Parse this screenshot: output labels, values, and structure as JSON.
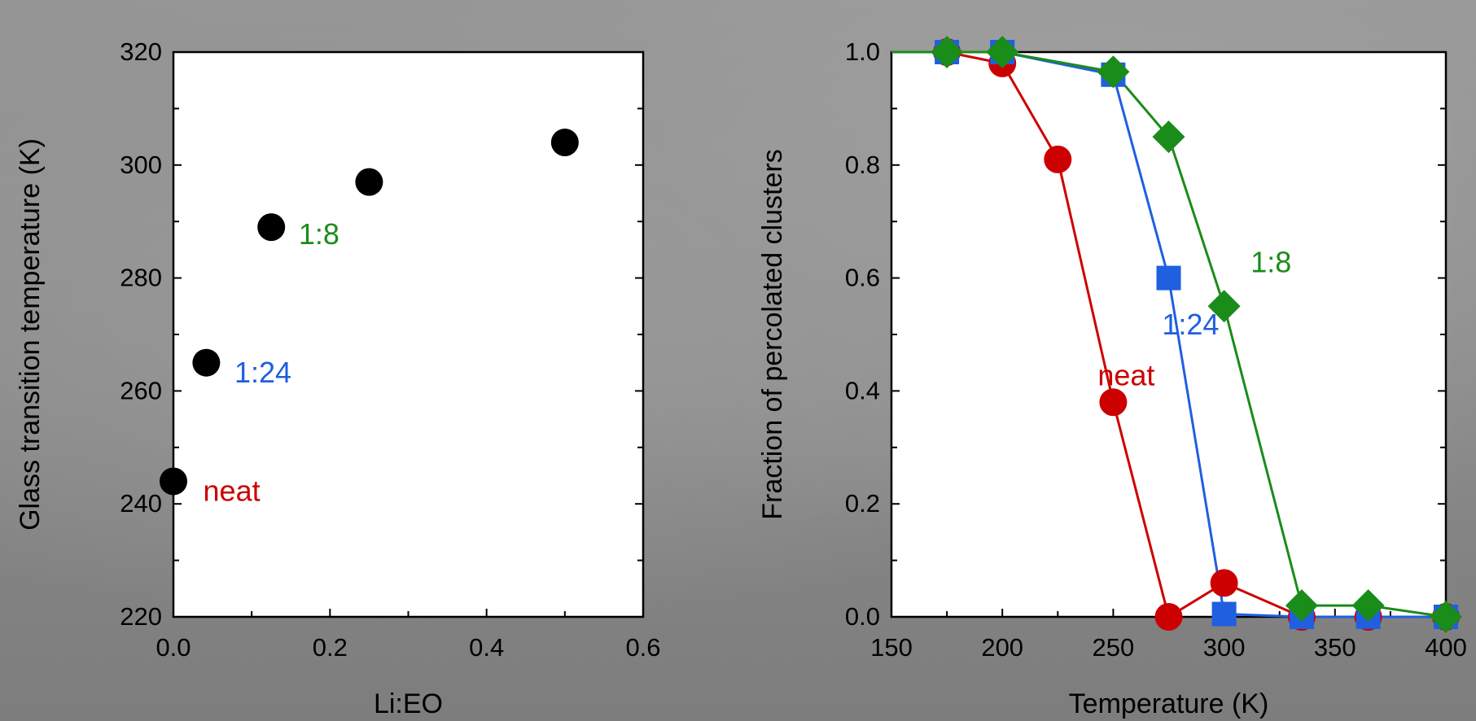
{
  "chart_data": [
    {
      "type": "scatter",
      "xlabel": "Li:EO",
      "ylabel": "Glass transition temperature (K)",
      "xlim": [
        0,
        0.6
      ],
      "ylim": [
        220,
        320
      ],
      "xticks": [
        "0.0",
        "0.2",
        "0.4",
        "0.6"
      ],
      "yticks": [
        "220",
        "240",
        "260",
        "280",
        "300",
        "320"
      ],
      "grid": false,
      "marker_color": "#000000",
      "points": [
        {
          "x": 0.0,
          "y": 244
        },
        {
          "x": 0.042,
          "y": 265
        },
        {
          "x": 0.125,
          "y": 289
        },
        {
          "x": 0.25,
          "y": 297
        },
        {
          "x": 0.5,
          "y": 304
        }
      ],
      "annotations": [
        {
          "text": "neat",
          "x": 0.038,
          "y": 240.5,
          "color": "#cc0000"
        },
        {
          "text": "1:24",
          "x": 0.078,
          "y": 261.5,
          "color": "#1f5fe0"
        },
        {
          "text": "1:8",
          "x": 0.16,
          "y": 286,
          "color": "#1a8c1a"
        }
      ]
    },
    {
      "type": "line",
      "xlabel": "Temperature (K)",
      "ylabel": "Fraction of percolated clusters",
      "xlim": [
        150,
        400
      ],
      "ylim": [
        0,
        1.0
      ],
      "xticks": [
        "150",
        "200",
        "250",
        "300",
        "350",
        "400"
      ],
      "yticks": [
        "0.0",
        "0.2",
        "0.4",
        "0.6",
        "0.8",
        "1.0"
      ],
      "grid": false,
      "series": [
        {
          "name": "neat",
          "color": "#cc0000",
          "marker": "circle",
          "x": [
            150,
            175,
            200,
            225,
            250,
            275,
            300,
            335,
            365,
            400
          ],
          "y": [
            1.0,
            1.0,
            0.98,
            0.81,
            0.38,
            0.0,
            0.06,
            0.0,
            0.0,
            0.0
          ],
          "marker_start": 1
        },
        {
          "name": "1:24",
          "color": "#1f5fe0",
          "marker": "square",
          "x": [
            150,
            175,
            200,
            250,
            275,
            300,
            335,
            365,
            400
          ],
          "y": [
            1.0,
            1.0,
            1.0,
            0.96,
            0.6,
            0.005,
            0.0,
            0.0,
            0.0
          ],
          "marker_start": 1
        },
        {
          "name": "1:8",
          "color": "#1a8c1a",
          "marker": "diamond",
          "x": [
            150,
            175,
            200,
            250,
            275,
            300,
            335,
            365,
            400
          ],
          "y": [
            1.0,
            1.0,
            1.0,
            0.965,
            0.85,
            0.55,
            0.02,
            0.02,
            0.0
          ],
          "marker_start": 1
        }
      ],
      "annotations": [
        {
          "text": "neat",
          "x": 243,
          "y": 0.41,
          "color": "#cc0000"
        },
        {
          "text": "1:24",
          "x": 272,
          "y": 0.5,
          "color": "#1f5fe0"
        },
        {
          "text": "1:8",
          "x": 312,
          "y": 0.61,
          "color": "#1a8c1a"
        }
      ]
    }
  ]
}
